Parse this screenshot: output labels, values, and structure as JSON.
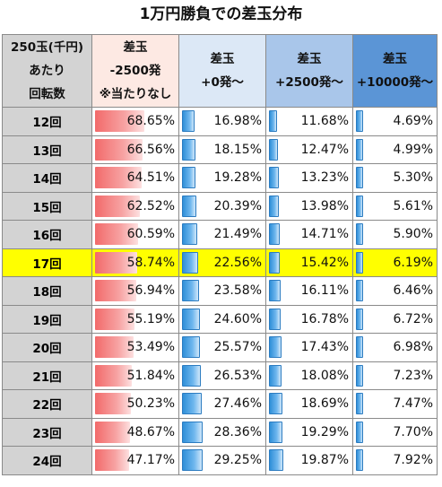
{
  "title": "1万円勝負での差玉分布",
  "headers": [
    [
      "250玉(千円)",
      "あたり",
      "回転数"
    ],
    [
      "差玉",
      "-2500発",
      "※当たりなし"
    ],
    [
      "差玉",
      "+0発～"
    ],
    [
      "差玉",
      "+2500発～"
    ],
    [
      "差玉",
      "+10000発～"
    ]
  ],
  "colors": {
    "highlight_row": "#ffff00",
    "negative_bar": "#f26a6a",
    "positive_bar": "#2f8fd8",
    "header_gray": "#d3d3d3",
    "header_pink": "#fde9e3",
    "header_lightblue": "#dce8f6",
    "header_midblue": "#a9c6ea",
    "header_blue": "#5b95d6"
  },
  "highlighted_row": "17回",
  "chart_data": {
    "type": "table",
    "title": "1万円勝負での差玉分布",
    "columns": [
      "250玉(千円) あたり 回転数",
      "差玉 -2500発 ※当たりなし",
      "差玉 +0発～",
      "差玉 +2500発～",
      "差玉 +10000発～"
    ],
    "rows": [
      {
        "label": "12回",
        "values": [
          "68.65%",
          "16.98%",
          "11.68%",
          "4.69%"
        ],
        "numeric": [
          68.65,
          16.98,
          11.68,
          4.69
        ]
      },
      {
        "label": "13回",
        "values": [
          "66.56%",
          "18.15%",
          "12.47%",
          "4.99%"
        ],
        "numeric": [
          66.56,
          18.15,
          12.47,
          4.99
        ]
      },
      {
        "label": "14回",
        "values": [
          "64.51%",
          "19.28%",
          "13.23%",
          "5.30%"
        ],
        "numeric": [
          64.51,
          19.28,
          13.23,
          5.3
        ]
      },
      {
        "label": "15回",
        "values": [
          "62.52%",
          "20.39%",
          "13.98%",
          "5.61%"
        ],
        "numeric": [
          62.52,
          20.39,
          13.98,
          5.61
        ]
      },
      {
        "label": "16回",
        "values": [
          "60.59%",
          "21.49%",
          "14.71%",
          "5.90%"
        ],
        "numeric": [
          60.59,
          21.49,
          14.71,
          5.9
        ]
      },
      {
        "label": "17回",
        "values": [
          "58.74%",
          "22.56%",
          "15.42%",
          "6.19%"
        ],
        "numeric": [
          58.74,
          22.56,
          15.42,
          6.19
        ]
      },
      {
        "label": "18回",
        "values": [
          "56.94%",
          "23.58%",
          "16.11%",
          "6.46%"
        ],
        "numeric": [
          56.94,
          23.58,
          16.11,
          6.46
        ]
      },
      {
        "label": "19回",
        "values": [
          "55.19%",
          "24.60%",
          "16.78%",
          "6.72%"
        ],
        "numeric": [
          55.19,
          24.6,
          16.78,
          6.72
        ]
      },
      {
        "label": "20回",
        "values": [
          "53.49%",
          "25.57%",
          "17.43%",
          "6.98%"
        ],
        "numeric": [
          53.49,
          25.57,
          17.43,
          6.98
        ]
      },
      {
        "label": "21回",
        "values": [
          "51.84%",
          "26.53%",
          "18.08%",
          "7.23%"
        ],
        "numeric": [
          51.84,
          26.53,
          18.08,
          7.23
        ]
      },
      {
        "label": "22回",
        "values": [
          "50.23%",
          "27.46%",
          "18.69%",
          "7.47%"
        ],
        "numeric": [
          50.23,
          27.46,
          18.69,
          7.47
        ]
      },
      {
        "label": "23回",
        "values": [
          "48.67%",
          "28.36%",
          "19.29%",
          "7.70%"
        ],
        "numeric": [
          48.67,
          28.36,
          19.29,
          7.7
        ]
      },
      {
        "label": "24回",
        "values": [
          "47.17%",
          "29.25%",
          "19.87%",
          "7.92%"
        ],
        "numeric": [
          47.17,
          29.25,
          19.87,
          7.92
        ]
      }
    ]
  }
}
